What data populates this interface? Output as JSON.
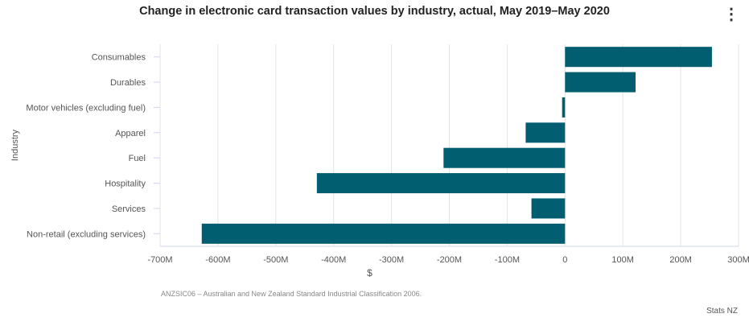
{
  "chart_data": {
    "type": "bar",
    "orientation": "horizontal",
    "title": "Change in electronic card transaction values by industry, actual, May 2019–May 2020",
    "xlabel": "$",
    "ylabel": "Industry",
    "categories": [
      "Consumables",
      "Durables",
      "Motor vehicles (excluding fuel)",
      "Apparel",
      "Fuel",
      "Hospitality",
      "Services",
      "Non-retail (excluding services)"
    ],
    "values": [
      254,
      122,
      -5,
      -68,
      -210,
      -429,
      -58,
      -628
    ],
    "units": "M",
    "xlim": [
      -700,
      300
    ],
    "xticks": [
      -700,
      -600,
      -500,
      -400,
      -300,
      -200,
      -100,
      0,
      100,
      200,
      300
    ],
    "xtick_labels": [
      "-700M",
      "-600M",
      "-500M",
      "-400M",
      "-300M",
      "-200M",
      "-100M",
      "0",
      "100M",
      "200M",
      "300M"
    ],
    "grid": true,
    "bar_color": "#005e70"
  },
  "note": "ANZSIC06 – Australian and New Zealand Standard Industrial Classification 2006.",
  "credit": "Stats NZ"
}
